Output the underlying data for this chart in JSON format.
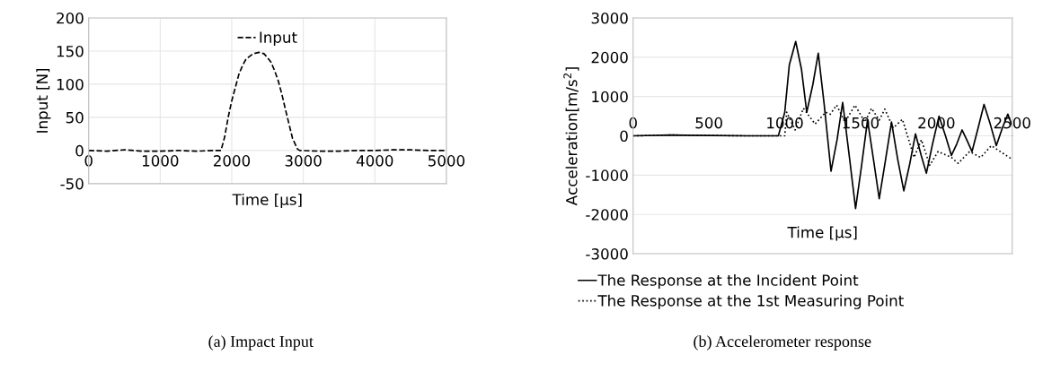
{
  "chart_data": [
    {
      "type": "line",
      "xlabel": "Time [µs]",
      "ylabel": "Input [N]",
      "xlim": [
        0,
        5000
      ],
      "ylim": [
        -50,
        200
      ],
      "xticks": [
        0,
        1000,
        2000,
        3000,
        4000,
        5000
      ],
      "yticks": [
        -50,
        0,
        50,
        100,
        150,
        200
      ],
      "grid": true,
      "legend": "top",
      "annotations": [
        "(a) Impact Input"
      ],
      "series": [
        {
          "name": "Input",
          "color": "#000000",
          "line_style": "dashed",
          "x": [
            0,
            250,
            500,
            750,
            1000,
            1250,
            1500,
            1750,
            1850,
            1900,
            1950,
            2000,
            2050,
            2100,
            2150,
            2200,
            2300,
            2380,
            2450,
            2500,
            2550,
            2600,
            2650,
            2700,
            2750,
            2800,
            2850,
            2920,
            2950,
            3250,
            3500,
            3750,
            4000,
            4250,
            4500,
            4750,
            5000
          ],
          "values": [
            0,
            -1,
            1,
            -1,
            -1,
            0,
            -1,
            0,
            0,
            20,
            50,
            75,
            95,
            115,
            128,
            138,
            146,
            148,
            146,
            140,
            133,
            120,
            105,
            85,
            62,
            40,
            18,
            2,
            0,
            -1,
            -1,
            0,
            0,
            1,
            1,
            0,
            0
          ]
        }
      ]
    },
    {
      "type": "line",
      "xlabel": "Time [µs]",
      "ylabel": "Acceleration[m/s$^{2}$]",
      "xlim": [
        0,
        2500
      ],
      "ylim": [
        -3000,
        3000
      ],
      "xticks": [
        0,
        500,
        1000,
        1500,
        2000,
        2500
      ],
      "yticks": [
        -3000,
        -2000,
        -1000,
        0,
        1000,
        2000,
        3000
      ],
      "grid": "y",
      "legend": "bottom left",
      "annotations": [
        "(b) Accelerometer response"
      ],
      "series": [
        {
          "name": "The Response at the Incident Point",
          "color": "#000000",
          "line_style": "solid",
          "x": [
            0,
            250,
            500,
            750,
            958,
            1000,
            1030,
            1072,
            1110,
            1145,
            1185,
            1221,
            1260,
            1305,
            1345,
            1382,
            1425,
            1467,
            1505,
            1546,
            1585,
            1623,
            1665,
            1704,
            1745,
            1785,
            1825,
            1862,
            1900,
            1934,
            1975,
            2017,
            2060,
            2099,
            2135,
            2169,
            2200,
            2235,
            2275,
            2314,
            2355,
            2395,
            2435,
            2471,
            2500
          ],
          "values": [
            0,
            20,
            10,
            0,
            0,
            600,
            1800,
            2400,
            1700,
            600,
            1300,
            2100,
            800,
            -900,
            -100,
            850,
            -500,
            -1850,
            -800,
            400,
            -600,
            -1600,
            -600,
            350,
            -600,
            -1400,
            -700,
            50,
            -500,
            -950,
            -200,
            500,
            0,
            -500,
            -200,
            150,
            -100,
            -400,
            200,
            800,
            300,
            -250,
            200,
            550,
            250
          ]
        },
        {
          "name": "The Response at the 1st Measuring Point",
          "color": "#000000",
          "line_style": "dotted",
          "x": [
            0,
            250,
            500,
            750,
            1000,
            1013,
            1068,
            1123,
            1200,
            1270,
            1300,
            1342,
            1397,
            1463,
            1529,
            1572,
            1623,
            1660,
            1715,
            1776,
            1853,
            1901,
            1956,
            2011,
            2099,
            2143,
            2219,
            2292,
            2362,
            2500
          ],
          "values": [
            0,
            20,
            10,
            0,
            0,
            600,
            150,
            700,
            300,
            600,
            550,
            780,
            350,
            780,
            350,
            700,
            400,
            680,
            200,
            420,
            -550,
            -100,
            -750,
            -400,
            -550,
            -700,
            -400,
            -550,
            -250,
            -600
          ]
        }
      ]
    }
  ]
}
